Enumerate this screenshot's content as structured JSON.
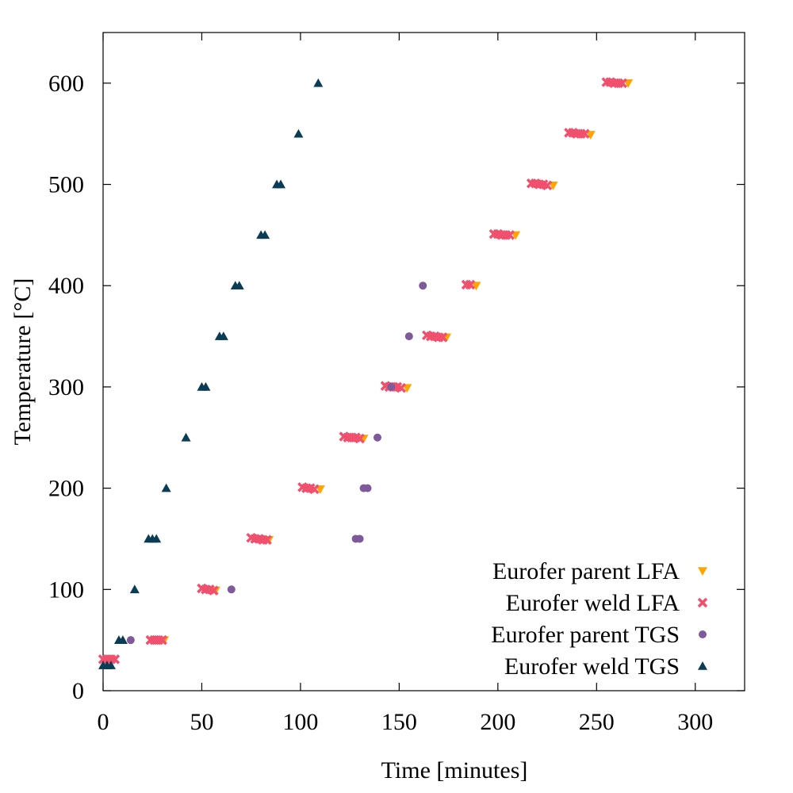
{
  "chart_data": {
    "type": "scatter",
    "xlabel": "Time [minutes]",
    "ylabel": "Temperature [°C]",
    "xlim": [
      0,
      325
    ],
    "ylim": [
      0,
      650
    ],
    "xticks": [
      0,
      50,
      100,
      150,
      200,
      250,
      300
    ],
    "yticks": [
      0,
      100,
      200,
      300,
      400,
      500,
      600
    ],
    "grid": false,
    "legend_position": "bottom-right",
    "series": [
      {
        "name": "Eurofer parent LFA",
        "marker": "triangle-down",
        "color": "#ffa500",
        "points": [
          [
            31,
            50
          ],
          [
            57,
            99
          ],
          [
            84,
            149
          ],
          [
            110,
            199
          ],
          [
            132,
            249
          ],
          [
            154,
            299
          ],
          [
            174,
            349
          ],
          [
            189,
            400
          ],
          [
            209,
            450
          ],
          [
            228,
            499
          ],
          [
            247,
            549
          ],
          [
            266,
            600
          ]
        ]
      },
      {
        "name": "Eurofer weld LFA",
        "marker": "x",
        "color": "#f0506e",
        "points": [
          [
            0,
            31
          ],
          [
            2,
            31
          ],
          [
            4,
            31
          ],
          [
            6,
            31
          ],
          [
            24,
            50
          ],
          [
            26,
            50
          ],
          [
            28,
            50
          ],
          [
            30,
            50
          ],
          [
            50,
            101
          ],
          [
            52,
            100
          ],
          [
            54,
            100
          ],
          [
            56,
            99
          ],
          [
            75,
            151
          ],
          [
            77,
            150
          ],
          [
            79,
            150
          ],
          [
            81,
            149
          ],
          [
            83,
            149
          ],
          [
            101,
            201
          ],
          [
            103,
            200
          ],
          [
            105,
            200
          ],
          [
            107,
            199
          ],
          [
            122,
            251
          ],
          [
            124,
            250
          ],
          [
            126,
            250
          ],
          [
            128,
            250
          ],
          [
            130,
            249
          ],
          [
            143,
            301
          ],
          [
            145,
            300
          ],
          [
            147,
            300
          ],
          [
            149,
            300
          ],
          [
            151,
            299
          ],
          [
            164,
            351
          ],
          [
            166,
            350
          ],
          [
            168,
            350
          ],
          [
            170,
            349
          ],
          [
            172,
            349
          ],
          [
            184,
            401
          ],
          [
            186,
            401
          ],
          [
            198,
            451
          ],
          [
            200,
            451
          ],
          [
            202,
            450
          ],
          [
            204,
            450
          ],
          [
            206,
            450
          ],
          [
            217,
            501
          ],
          [
            219,
            501
          ],
          [
            221,
            500
          ],
          [
            223,
            500
          ],
          [
            225,
            499
          ],
          [
            236,
            551
          ],
          [
            238,
            551
          ],
          [
            240,
            550
          ],
          [
            242,
            550
          ],
          [
            244,
            550
          ],
          [
            255,
            601
          ],
          [
            257,
            601
          ],
          [
            259,
            600
          ],
          [
            261,
            600
          ],
          [
            263,
            600
          ]
        ]
      },
      {
        "name": "Eurofer parent TGS",
        "marker": "circle",
        "color": "#7e5a9b",
        "points": [
          [
            14,
            50
          ],
          [
            65,
            100
          ],
          [
            128,
            150
          ],
          [
            130,
            150
          ],
          [
            132,
            200
          ],
          [
            134,
            200
          ],
          [
            139,
            250
          ],
          [
            146,
            300
          ],
          [
            155,
            350
          ],
          [
            162,
            400
          ]
        ]
      },
      {
        "name": "Eurofer weld TGS",
        "marker": "triangle-up",
        "color": "#0b3c56",
        "points": [
          [
            0,
            25
          ],
          [
            2,
            25
          ],
          [
            4,
            25
          ],
          [
            8,
            50
          ],
          [
            10,
            50
          ],
          [
            16,
            100
          ],
          [
            23,
            150
          ],
          [
            25,
            150
          ],
          [
            27,
            150
          ],
          [
            32,
            200
          ],
          [
            42,
            250
          ],
          [
            50,
            300
          ],
          [
            52,
            300
          ],
          [
            59,
            350
          ],
          [
            61,
            350
          ],
          [
            67,
            400
          ],
          [
            69,
            400
          ],
          [
            80,
            450
          ],
          [
            82,
            450
          ],
          [
            88,
            500
          ],
          [
            90,
            500
          ],
          [
            99,
            550
          ],
          [
            109,
            600
          ]
        ]
      }
    ]
  }
}
